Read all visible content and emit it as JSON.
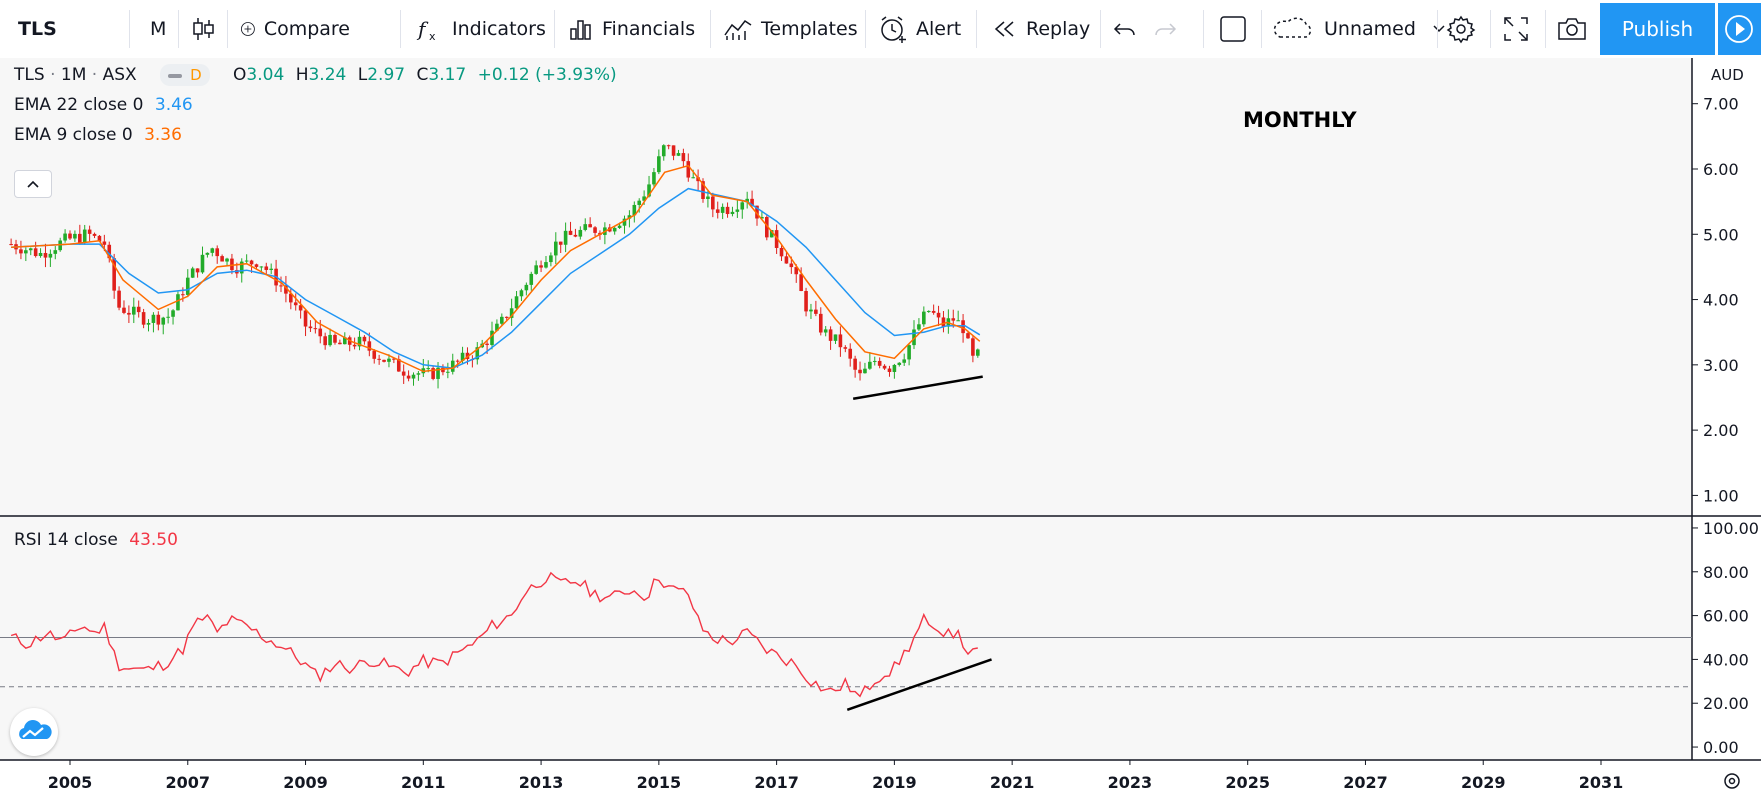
{
  "toolbar": {
    "symbol": "TLS",
    "interval": "M",
    "compare": "Compare",
    "indicators": "Indicators",
    "financials": "Financials",
    "templates": "Templates",
    "alert": "Alert",
    "replay": "Replay",
    "layout_name": "Unnamed",
    "publish": "Publish"
  },
  "legend": {
    "symbol": "TLS",
    "interval": "1M",
    "exchange": "ASX",
    "badge": "D",
    "open_label": "O",
    "open": "3.04",
    "high_label": "H",
    "high": "3.24",
    "low_label": "L",
    "low": "2.97",
    "close_label": "C",
    "close": "3.17",
    "change": "+0.12 (+3.93%)",
    "ema22_label": "EMA 22 close 0",
    "ema22_value": "3.46",
    "ema9_label": "EMA 9 close 0",
    "ema9_value": "3.36",
    "rsi_label": "RSI 14 close",
    "rsi_value": "43.50"
  },
  "annotation": "MONTHLY",
  "currency": "AUD",
  "colors": {
    "up": "#22ab2a",
    "down": "#e0201c",
    "ema22": "#2196f3",
    "ema9": "#ff6d00",
    "rsi": "#f23645",
    "accent": "#2196f3",
    "trendline": "#000000"
  },
  "chart_data": [
    {
      "type": "candlestick",
      "title": "TLS · 1M · ASX",
      "ylim": [
        0.7,
        7.7
      ],
      "yticks": [
        "7.00",
        "6.00",
        "5.00",
        "4.00",
        "3.00",
        "2.00",
        "1.00"
      ],
      "xticks": [
        "2005",
        "2007",
        "2009",
        "2011",
        "2013",
        "2015",
        "2017",
        "2019",
        "2021",
        "2023",
        "2025",
        "2027",
        "2029",
        "2031"
      ],
      "close_path": [
        [
          2004.0,
          4.85
        ],
        [
          2004.5,
          4.7
        ],
        [
          2004.9,
          4.9
        ],
        [
          2005.3,
          5.0
        ],
        [
          2005.6,
          4.85
        ],
        [
          2005.8,
          3.9
        ],
        [
          2006.3,
          3.7
        ],
        [
          2006.7,
          3.75
        ],
        [
          2007.0,
          4.3
        ],
        [
          2007.4,
          4.8
        ],
        [
          2007.8,
          4.5
        ],
        [
          2008.2,
          4.6
        ],
        [
          2008.6,
          4.2
        ],
        [
          2009.0,
          3.6
        ],
        [
          2009.5,
          3.3
        ],
        [
          2009.9,
          3.35
        ],
        [
          2010.3,
          3.1
        ],
        [
          2010.7,
          2.9
        ],
        [
          2011.1,
          2.85
        ],
        [
          2011.5,
          3.0
        ],
        [
          2011.9,
          3.2
        ],
        [
          2012.3,
          3.6
        ],
        [
          2012.7,
          4.2
        ],
        [
          2013.0,
          4.6
        ],
        [
          2013.3,
          4.9
        ],
        [
          2013.7,
          5.05
        ],
        [
          2014.1,
          5.1
        ],
        [
          2014.5,
          5.3
        ],
        [
          2014.8,
          5.7
        ],
        [
          2015.1,
          6.35
        ],
        [
          2015.4,
          6.15
        ],
        [
          2015.6,
          5.8
        ],
        [
          2015.9,
          5.4
        ],
        [
          2016.2,
          5.4
        ],
        [
          2016.5,
          5.6
        ],
        [
          2016.8,
          5.1
        ],
        [
          2017.2,
          4.6
        ],
        [
          2017.5,
          3.9
        ],
        [
          2017.8,
          3.5
        ],
        [
          2018.1,
          3.3
        ],
        [
          2018.4,
          2.8
        ],
        [
          2018.7,
          3.1
        ],
        [
          2018.9,
          2.95
        ],
        [
          2019.2,
          3.2
        ],
        [
          2019.4,
          3.6
        ],
        [
          2019.6,
          3.85
        ],
        [
          2019.8,
          3.6
        ],
        [
          2020.0,
          3.7
        ],
        [
          2020.2,
          3.55
        ],
        [
          2020.3,
          3.05
        ],
        [
          2020.45,
          3.17
        ]
      ],
      "ema22_path": [
        [
          2004.0,
          4.8
        ],
        [
          2005.0,
          4.85
        ],
        [
          2005.5,
          4.85
        ],
        [
          2006.0,
          4.4
        ],
        [
          2006.5,
          4.1
        ],
        [
          2007.0,
          4.15
        ],
        [
          2007.5,
          4.4
        ],
        [
          2008.0,
          4.45
        ],
        [
          2008.5,
          4.35
        ],
        [
          2009.0,
          4.0
        ],
        [
          2009.5,
          3.75
        ],
        [
          2010.0,
          3.5
        ],
        [
          2010.5,
          3.2
        ],
        [
          2011.0,
          3.0
        ],
        [
          2011.5,
          2.95
        ],
        [
          2012.0,
          3.15
        ],
        [
          2012.5,
          3.5
        ],
        [
          2013.0,
          3.95
        ],
        [
          2013.5,
          4.4
        ],
        [
          2014.0,
          4.7
        ],
        [
          2014.5,
          5.0
        ],
        [
          2015.0,
          5.4
        ],
        [
          2015.5,
          5.7
        ],
        [
          2016.0,
          5.6
        ],
        [
          2016.5,
          5.5
        ],
        [
          2017.0,
          5.2
        ],
        [
          2017.5,
          4.8
        ],
        [
          2018.0,
          4.3
        ],
        [
          2018.5,
          3.8
        ],
        [
          2019.0,
          3.45
        ],
        [
          2019.5,
          3.5
        ],
        [
          2019.9,
          3.6
        ],
        [
          2020.2,
          3.6
        ],
        [
          2020.45,
          3.46
        ]
      ],
      "ema9_path": [
        [
          2004.0,
          4.8
        ],
        [
          2005.0,
          4.85
        ],
        [
          2005.5,
          4.9
        ],
        [
          2005.9,
          4.3
        ],
        [
          2006.5,
          3.85
        ],
        [
          2007.0,
          4.05
        ],
        [
          2007.5,
          4.5
        ],
        [
          2008.0,
          4.55
        ],
        [
          2008.6,
          4.25
        ],
        [
          2009.2,
          3.65
        ],
        [
          2009.8,
          3.35
        ],
        [
          2010.4,
          3.15
        ],
        [
          2011.0,
          2.9
        ],
        [
          2011.5,
          2.95
        ],
        [
          2012.0,
          3.3
        ],
        [
          2012.5,
          3.75
        ],
        [
          2013.0,
          4.3
        ],
        [
          2013.5,
          4.75
        ],
        [
          2014.0,
          5.0
        ],
        [
          2014.6,
          5.3
        ],
        [
          2015.1,
          5.95
        ],
        [
          2015.5,
          6.05
        ],
        [
          2015.9,
          5.6
        ],
        [
          2016.5,
          5.5
        ],
        [
          2017.0,
          4.95
        ],
        [
          2017.5,
          4.3
        ],
        [
          2018.0,
          3.7
        ],
        [
          2018.5,
          3.2
        ],
        [
          2019.0,
          3.1
        ],
        [
          2019.5,
          3.55
        ],
        [
          2019.9,
          3.65
        ],
        [
          2020.2,
          3.55
        ],
        [
          2020.45,
          3.36
        ]
      ],
      "trendline": [
        [
          2018.3,
          2.48
        ],
        [
          2020.5,
          2.82
        ]
      ]
    },
    {
      "type": "line",
      "title": "RSI 14 close",
      "ylim": [
        -5,
        105
      ],
      "yticks": [
        "100.00",
        "80.00",
        "60.00",
        "40.00",
        "20.00",
        "0.00"
      ],
      "levels": [
        50,
        27.5
      ],
      "series": [
        {
          "name": "RSI 14 close",
          "values": [
            [
              2004.0,
              50
            ],
            [
              2004.3,
              47
            ],
            [
              2004.6,
              52
            ],
            [
              2004.9,
              48
            ],
            [
              2005.2,
              56
            ],
            [
              2005.4,
              52
            ],
            [
              2005.6,
              55
            ],
            [
              2005.8,
              38
            ],
            [
              2006.0,
              36
            ],
            [
              2006.3,
              35
            ],
            [
              2006.6,
              38
            ],
            [
              2006.9,
              44
            ],
            [
              2007.1,
              55
            ],
            [
              2007.3,
              60
            ],
            [
              2007.5,
              52
            ],
            [
              2007.7,
              58
            ],
            [
              2008.0,
              55
            ],
            [
              2008.3,
              50
            ],
            [
              2008.6,
              46
            ],
            [
              2008.9,
              40
            ],
            [
              2009.2,
              32
            ],
            [
              2009.5,
              38
            ],
            [
              2009.8,
              36
            ],
            [
              2010.1,
              40
            ],
            [
              2010.4,
              37
            ],
            [
              2010.7,
              34
            ],
            [
              2011.0,
              39
            ],
            [
              2011.3,
              38
            ],
            [
              2011.6,
              43
            ],
            [
              2011.9,
              48
            ],
            [
              2012.2,
              56
            ],
            [
              2012.5,
              60
            ],
            [
              2012.7,
              70
            ],
            [
              2012.9,
              74
            ],
            [
              2013.1,
              78
            ],
            [
              2013.3,
              74
            ],
            [
              2013.6,
              76
            ],
            [
              2013.9,
              70
            ],
            [
              2014.2,
              68
            ],
            [
              2014.5,
              72
            ],
            [
              2014.8,
              69
            ],
            [
              2015.0,
              78
            ],
            [
              2015.2,
              72
            ],
            [
              2015.5,
              70
            ],
            [
              2015.7,
              55
            ],
            [
              2015.9,
              50
            ],
            [
              2016.2,
              48
            ],
            [
              2016.5,
              52
            ],
            [
              2016.8,
              45
            ],
            [
              2017.0,
              42
            ],
            [
              2017.3,
              38
            ],
            [
              2017.6,
              30
            ],
            [
              2017.9,
              25
            ],
            [
              2018.2,
              29
            ],
            [
              2018.4,
              22
            ],
            [
              2018.7,
              32
            ],
            [
              2019.0,
              36
            ],
            [
              2019.3,
              48
            ],
            [
              2019.5,
              58
            ],
            [
              2019.7,
              50
            ],
            [
              2019.9,
              55
            ],
            [
              2020.1,
              50
            ],
            [
              2020.3,
              42
            ],
            [
              2020.45,
              43.5
            ]
          ]
        }
      ],
      "trendline": [
        [
          2018.2,
          17
        ],
        [
          2020.65,
          40
        ]
      ]
    }
  ]
}
